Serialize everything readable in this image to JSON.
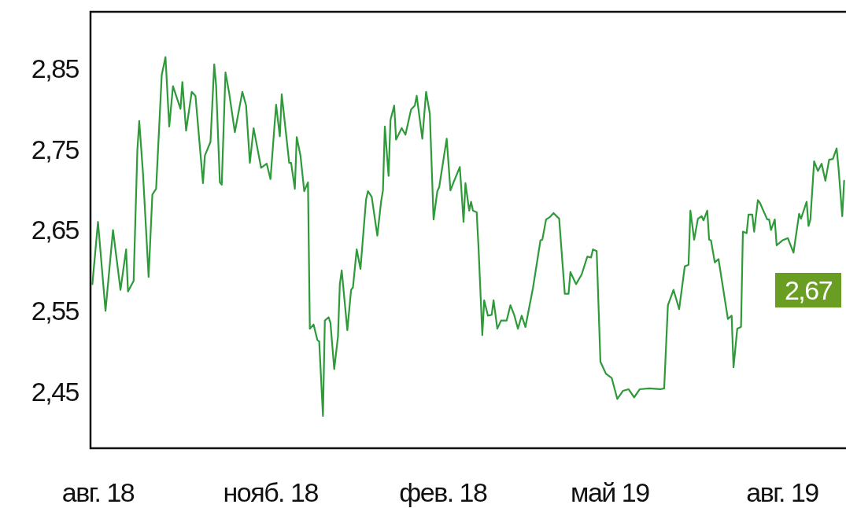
{
  "chart_data": {
    "type": "line",
    "x": [
      "2018-07-29",
      "2018-08-01",
      "2018-08-05",
      "2018-08-09",
      "2018-08-13",
      "2018-08-16",
      "2018-08-17",
      "2018-08-20",
      "2018-08-22",
      "2018-08-23",
      "2018-08-25",
      "2018-08-28",
      "2018-08-30",
      "2018-09-01",
      "2018-09-04",
      "2018-09-06",
      "2018-09-08",
      "2018-09-10",
      "2018-09-14",
      "2018-09-15",
      "2018-09-17",
      "2018-09-20",
      "2018-09-22",
      "2018-09-26",
      "2018-09-27",
      "2018-09-30",
      "2018-10-02",
      "2018-10-03",
      "2018-10-05",
      "2018-10-06",
      "2018-10-08",
      "2018-10-10",
      "2018-10-13",
      "2018-10-17",
      "2018-10-19",
      "2018-10-21",
      "2018-10-23",
      "2018-10-27",
      "2018-10-30",
      "2018-11-01",
      "2018-11-04",
      "2018-11-06",
      "2018-11-07",
      "2018-11-11",
      "2018-11-12",
      "2018-11-14",
      "2018-11-15",
      "2018-11-17",
      "2018-11-19",
      "2018-11-21",
      "2018-11-22",
      "2018-11-24",
      "2018-11-26",
      "2018-11-27",
      "2018-11-29",
      "2018-11-30",
      "2018-12-02",
      "2018-12-03",
      "2018-12-05",
      "2018-12-07",
      "2018-12-08",
      "2018-12-09",
      "2018-12-12",
      "2018-12-14",
      "2018-12-15",
      "2018-12-17",
      "2018-12-19",
      "2018-12-22",
      "2018-12-23",
      "2018-12-25",
      "2018-12-28",
      "2018-12-30",
      "2018-12-31",
      "2019-01-01",
      "2019-01-03",
      "2019-01-04",
      "2019-01-06",
      "2019-01-07",
      "2019-01-10",
      "2019-01-12",
      "2019-01-15",
      "2019-01-17",
      "2019-01-18",
      "2019-01-21",
      "2019-01-23",
      "2019-01-25",
      "2019-01-27",
      "2019-01-29",
      "2019-01-30",
      "2019-02-03",
      "2019-02-05",
      "2019-02-07",
      "2019-02-10",
      "2019-02-12",
      "2019-02-13",
      "2019-02-15",
      "2019-02-16",
      "2019-02-17",
      "2019-02-19",
      "2019-02-20",
      "2019-02-22",
      "2019-02-23",
      "2019-02-25",
      "2019-02-27",
      "2019-02-28",
      "2019-03-02",
      "2019-03-04",
      "2019-03-07",
      "2019-03-09",
      "2019-03-11",
      "2019-03-13",
      "2019-03-15",
      "2019-03-17",
      "2019-03-21",
      "2019-03-25",
      "2019-03-26",
      "2019-03-28",
      "2019-03-30",
      "2019-04-01",
      "2019-04-04",
      "2019-04-07",
      "2019-04-09",
      "2019-04-10",
      "2019-04-13",
      "2019-04-16",
      "2019-04-19",
      "2019-04-21",
      "2019-04-22",
      "2019-04-24",
      "2019-04-26",
      "2019-04-29",
      "2019-05-02",
      "2019-05-05",
      "2019-05-08",
      "2019-05-11",
      "2019-05-14",
      "2019-05-17",
      "2019-05-22",
      "2019-05-28",
      "2019-05-30",
      "2019-06-01",
      "2019-06-04",
      "2019-06-07",
      "2019-06-10",
      "2019-06-12",
      "2019-06-13",
      "2019-06-15",
      "2019-06-17",
      "2019-06-19",
      "2019-06-20",
      "2019-06-22",
      "2019-06-23",
      "2019-06-24",
      "2019-06-26",
      "2019-06-28",
      "2019-07-03",
      "2019-07-05",
      "2019-07-06",
      "2019-07-08",
      "2019-07-10",
      "2019-07-11",
      "2019-07-13",
      "2019-07-14",
      "2019-07-16",
      "2019-07-17",
      "2019-07-19",
      "2019-07-20",
      "2019-07-24",
      "2019-07-25",
      "2019-07-26",
      "2019-07-28",
      "2019-07-29",
      "2019-08-01",
      "2019-08-04",
      "2019-08-07",
      "2019-08-10",
      "2019-08-11",
      "2019-08-14",
      "2019-08-15",
      "2019-08-16",
      "2019-08-18",
      "2019-08-20",
      "2019-08-22",
      "2019-08-24",
      "2019-08-26",
      "2019-08-28",
      "2019-08-30",
      "2019-08-31",
      "2019-09-02",
      "2019-09-03"
    ],
    "series": [
      {
        "color": "#2e9a3a",
        "values": [
          2.583,
          2.66,
          2.55,
          2.65,
          2.576,
          2.626,
          2.574,
          2.587,
          2.749,
          2.785,
          2.72,
          2.592,
          2.694,
          2.701,
          2.842,
          2.864,
          2.778,
          2.828,
          2.8,
          2.833,
          2.773,
          2.821,
          2.816,
          2.708,
          2.742,
          2.759,
          2.855,
          2.829,
          2.709,
          2.706,
          2.845,
          2.819,
          2.771,
          2.821,
          2.804,
          2.733,
          2.776,
          2.727,
          2.732,
          2.713,
          2.805,
          2.766,
          2.818,
          2.733,
          2.733,
          2.701,
          2.765,
          2.742,
          2.698,
          2.709,
          2.528,
          2.533,
          2.514,
          2.512,
          2.42,
          2.538,
          2.542,
          2.535,
          2.478,
          2.518,
          2.583,
          2.6,
          2.526,
          2.576,
          2.579,
          2.626,
          2.602,
          2.688,
          2.698,
          2.691,
          2.643,
          2.685,
          2.699,
          2.778,
          2.717,
          2.786,
          2.804,
          2.762,
          2.776,
          2.768,
          2.799,
          2.804,
          2.816,
          2.763,
          2.821,
          2.794,
          2.663,
          2.698,
          2.703,
          2.763,
          2.699,
          2.711,
          2.728,
          2.66,
          2.708,
          2.674,
          2.685,
          2.674,
          2.672,
          2.627,
          2.52,
          2.563,
          2.544,
          2.545,
          2.563,
          2.528,
          2.538,
          2.538,
          2.557,
          2.545,
          2.528,
          2.544,
          2.53,
          2.578,
          2.637,
          2.638,
          2.663,
          2.666,
          2.671,
          2.664,
          2.571,
          2.571,
          2.598,
          2.583,
          2.595,
          2.617,
          2.616,
          2.626,
          2.624,
          2.487,
          2.472,
          2.467,
          2.441,
          2.451,
          2.453,
          2.443,
          2.453,
          2.454,
          2.453,
          2.454,
          2.557,
          2.576,
          2.552,
          2.605,
          2.607,
          2.674,
          2.638,
          2.664,
          2.667,
          2.662,
          2.674,
          2.638,
          2.637,
          2.61,
          2.614,
          2.54,
          2.544,
          2.48,
          2.528,
          2.53,
          2.648,
          2.646,
          2.669,
          2.669,
          2.648,
          2.687,
          2.684,
          2.663,
          2.663,
          2.65,
          2.663,
          2.631,
          2.637,
          2.64,
          2.622,
          2.67,
          2.664,
          2.685,
          2.655,
          2.663,
          2.735,
          2.723,
          2.732,
          2.711,
          2.737,
          2.738,
          2.751,
          2.727,
          2.667,
          2.711
        ]
      }
    ],
    "xlim": [
      "2018-07-28",
      "2019-09-04"
    ],
    "xticks": [
      {
        "value": "2018-08-01",
        "label": "авг. 18"
      },
      {
        "value": "2018-11-01",
        "label": "нояб. 18"
      },
      {
        "value": "2019-02-01",
        "label": "фев. 18"
      },
      {
        "value": "2019-05-01",
        "label": "май 19"
      },
      {
        "value": "2019-08-01",
        "label": "авг. 19"
      }
    ],
    "ylim": [
      2.38,
      2.92
    ],
    "yticks": [
      {
        "value": 2.45,
        "label": "2,45"
      },
      {
        "value": 2.55,
        "label": "2,55"
      },
      {
        "value": 2.65,
        "label": "2,65"
      },
      {
        "value": 2.75,
        "label": "2,75"
      },
      {
        "value": 2.85,
        "label": "2,85"
      }
    ],
    "grid": false,
    "annotations": [
      "2,67"
    ]
  }
}
